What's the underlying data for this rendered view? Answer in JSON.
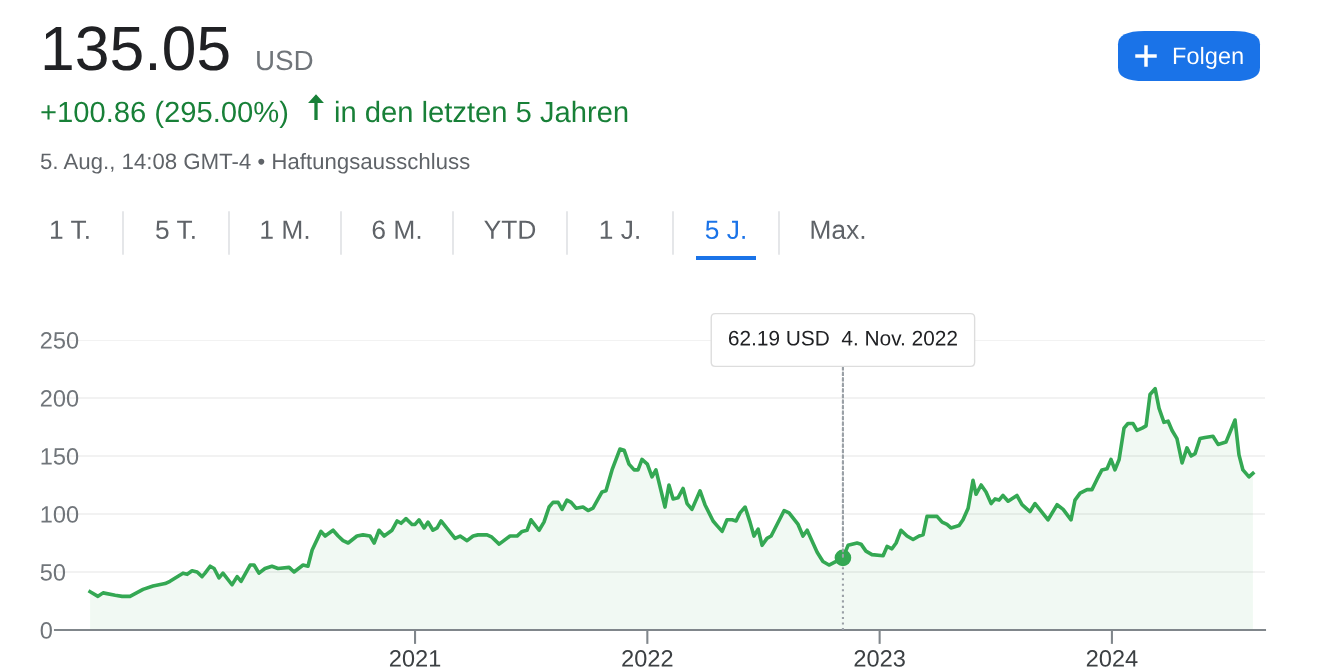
{
  "chart_data": {
    "type": "area",
    "x": [
      2019.601,
      2019.635,
      2019.657,
      2019.709,
      2019.739,
      2019.773,
      2019.829,
      2019.872,
      2019.924,
      2019.945,
      2020.001,
      2020.019,
      2020.04,
      2020.062,
      2020.083,
      2020.096,
      2020.118,
      2020.135,
      2020.156,
      2020.173,
      2020.212,
      2020.234,
      2020.251,
      2020.29,
      2020.307,
      2020.328,
      2020.354,
      2020.384,
      2020.41,
      2020.458,
      2020.479,
      2020.518,
      2020.539,
      2020.557,
      2020.595,
      2020.613,
      2020.647,
      2020.669,
      2020.69,
      2020.712,
      2020.75,
      2020.776,
      2020.806,
      2020.824,
      2020.845,
      2020.867,
      2020.901,
      2020.923,
      2020.94,
      2020.961,
      2020.987,
      2021.0,
      2021.017,
      2021.039,
      2021.056,
      2021.077,
      2021.095,
      2021.112,
      2021.172,
      2021.194,
      2021.224,
      2021.25,
      2021.271,
      2021.31,
      2021.331,
      2021.362,
      2021.409,
      2021.439,
      2021.461,
      2021.482,
      2021.499,
      2021.534,
      2021.555,
      2021.577,
      2021.594,
      2021.616,
      2021.633,
      2021.654,
      2021.672,
      2021.693,
      2021.723,
      2021.745,
      2021.766,
      2021.805,
      2021.822,
      2021.848,
      2021.882,
      2021.9,
      2021.921,
      2021.943,
      2021.96,
      2021.977,
      2022.0,
      2022.02,
      2022.037,
      2022.076,
      2022.093,
      2022.111,
      2022.132,
      2022.154,
      2022.171,
      2022.192,
      2022.227,
      2022.248,
      2022.283,
      2022.3,
      2022.322,
      2022.343,
      2022.365,
      2022.382,
      2022.399,
      2022.421,
      2022.442,
      2022.459,
      2022.477,
      2022.494,
      2022.515,
      2022.533,
      2022.589,
      2022.61,
      2022.649,
      2022.67,
      2022.688,
      2022.731,
      2022.756,
      2022.782,
      2022.842,
      2022.864,
      2022.903,
      2022.92,
      2022.941,
      2022.967,
      2023.015,
      2023.032,
      2023.053,
      2023.071,
      2023.092,
      2023.118,
      2023.144,
      2023.17,
      2023.187,
      2023.204,
      2023.247,
      2023.269,
      2023.29,
      2023.307,
      2023.342,
      2023.359,
      2023.381,
      2023.402,
      2023.415,
      2023.437,
      2023.458,
      2023.48,
      2023.497,
      2023.514,
      2023.531,
      2023.553,
      2023.591,
      2023.613,
      2023.647,
      2023.669,
      2023.725,
      2023.764,
      2023.79,
      2023.824,
      2023.841,
      2023.863,
      2023.893,
      2023.914,
      2023.936,
      2023.957,
      2023.979,
      2023.996,
      2024.013,
      2024.031,
      2024.052,
      2024.069,
      2024.091,
      2024.108,
      2024.13,
      2024.147,
      2024.164,
      2024.186,
      2024.203,
      2024.224,
      2024.242,
      2024.259,
      2024.28,
      2024.302,
      2024.323,
      2024.341,
      2024.358,
      2024.379,
      2024.401,
      2024.435,
      2024.457,
      2024.491,
      2024.53,
      2024.547,
      2024.564,
      2024.59,
      2024.607
    ],
    "series": [
      {
        "color": "#34a853",
        "values": [
          33,
          29,
          32,
          30,
          29,
          29,
          35,
          38,
          40,
          42,
          49,
          48,
          51,
          50,
          46,
          49,
          55,
          53,
          45,
          49,
          39,
          46,
          42,
          56,
          56,
          49,
          53,
          55,
          53,
          54,
          50,
          56,
          55,
          69,
          85,
          81,
          86,
          81,
          77,
          75,
          81,
          82,
          81,
          75,
          86,
          81,
          86,
          94,
          92,
          96,
          91,
          91,
          95,
          88,
          93,
          86,
          88,
          94,
          79,
          81,
          77,
          81,
          82,
          82,
          80,
          74,
          81,
          81,
          85,
          86,
          95,
          86,
          93,
          106,
          110,
          110,
          104,
          112,
          110,
          105,
          106,
          103,
          105,
          119,
          120,
          138,
          156,
          155,
          143,
          138,
          138,
          147,
          143,
          132,
          138,
          106,
          125,
          113,
          114,
          122,
          109,
          104,
          120,
          108,
          94,
          90,
          85,
          95,
          95,
          94,
          101,
          106,
          93,
          81,
          87,
          73,
          79,
          81,
          103,
          101,
          91,
          81,
          86,
          67,
          59,
          56,
          62.19,
          73,
          75,
          74,
          68,
          65,
          64,
          72,
          70,
          75,
          86,
          81,
          78,
          81,
          82,
          98,
          98,
          93,
          91,
          88,
          90,
          95,
          105,
          129,
          117,
          125,
          119,
          109,
          113,
          112,
          116,
          111,
          116,
          108,
          102,
          109,
          95,
          108,
          104,
          95,
          112,
          118,
          121,
          121,
          130,
          138,
          139,
          147,
          138,
          147,
          174,
          178,
          178,
          172,
          174,
          176,
          203,
          208,
          191,
          179,
          180,
          172,
          165,
          144,
          157,
          150,
          152,
          165,
          166,
          167,
          160,
          162,
          181,
          151,
          138,
          132,
          135.05
        ]
      }
    ],
    "xlim": [
      2019.45,
      2024.659
    ],
    "xticks": [
      2021,
      2022,
      2023,
      2024
    ],
    "ylim": [
      0,
      250
    ],
    "yticks": [
      0,
      50,
      100,
      150,
      200,
      250
    ],
    "grid": "y",
    "legend": false,
    "ref_lines": [
      {
        "axis": "x",
        "value": 2022.842,
        "color": "#9aa0a6",
        "line_style": "dotted"
      }
    ],
    "annotations": [
      "135.05",
      "USD",
      "+100.86 (295.00%)",
      "in den letzten 5 Jahren",
      "5. Aug., 14:08 GMT-4 • Haftungsausschluss",
      "Folgen",
      "1 T.",
      "5 T.",
      "1 M.",
      "6 M.",
      "YTD",
      "1 J.",
      "5 J.",
      "Max.",
      {
        "text": "62.19 USD  4. Nov. 2022",
        "x": 2022.842,
        "y": 62.19
      }
    ]
  }
}
